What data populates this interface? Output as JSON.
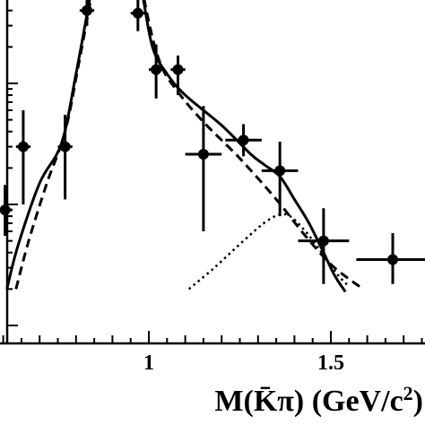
{
  "chart_data": {
    "type": "scatter",
    "xlabel": "M(K̄π) (GeV/c²)",
    "xlabel_main": "M(K̄π) (GeV/c",
    "xlabel_sup": "2",
    "xlabel_tail": ")",
    "xlim": [
      0.6,
      1.77
    ],
    "ylog": true,
    "grid": false,
    "legend": "none",
    "x_ticks": [
      {
        "value": 1.0,
        "label": "1"
      },
      {
        "value": 1.5,
        "label": "1.5"
      }
    ],
    "points": [
      {
        "x": 0.605,
        "xerr": 0.02,
        "y": 0.9,
        "ylo": 0.55,
        "yhi": 1.45
      },
      {
        "x": 0.655,
        "xerr": 0.02,
        "y": 3.0,
        "ylo": 1.0,
        "yhi": 6.0
      },
      {
        "x": 0.77,
        "xerr": 0.02,
        "y": 3.0,
        "ylo": 1.1,
        "yhi": 5.5
      },
      {
        "x": 0.83,
        "xerr": 0.02,
        "y": 40,
        "ylo": 30,
        "yhi": 55
      },
      {
        "x": 0.97,
        "xerr": 0.02,
        "y": 38,
        "ylo": 27,
        "yhi": 55
      },
      {
        "x": 1.02,
        "xerr": 0.02,
        "y": 13,
        "ylo": 7.5,
        "yhi": 21
      },
      {
        "x": 1.08,
        "xerr": 0.02,
        "y": 13,
        "ylo": 8.0,
        "yhi": 17
      },
      {
        "x": 1.15,
        "xerr": 0.05,
        "y": 2.6,
        "ylo": 0.6,
        "yhi": 6.5
      },
      {
        "x": 1.26,
        "xerr": 0.05,
        "y": 3.4,
        "ylo": 2.5,
        "yhi": 4.6
      },
      {
        "x": 1.36,
        "xerr": 0.05,
        "y": 1.9,
        "ylo": 0.8,
        "yhi": 3.3
      },
      {
        "x": 1.48,
        "xerr": 0.07,
        "y": 0.5,
        "ylo": 0.22,
        "yhi": 0.93
      },
      {
        "x": 1.67,
        "xerr": 0.1,
        "y": 0.35,
        "ylo": 0.22,
        "yhi": 0.58
      }
    ],
    "curves": [
      {
        "style": "solid",
        "points": [
          [
            0.61,
            0.2
          ],
          [
            0.64,
            0.45
          ],
          [
            0.7,
            1.5
          ],
          [
            0.76,
            3.2
          ],
          [
            0.8,
            12
          ],
          [
            0.85,
            80
          ],
          [
            0.88,
            250
          ],
          [
            0.94,
            250
          ],
          [
            0.98,
            60
          ],
          [
            1.01,
            20
          ],
          [
            1.05,
            12
          ],
          [
            1.1,
            8
          ],
          [
            1.2,
            4.5
          ],
          [
            1.28,
            2.6
          ],
          [
            1.32,
            2.1
          ],
          [
            1.36,
            1.7
          ],
          [
            1.4,
            1.1
          ],
          [
            1.44,
            0.7
          ],
          [
            1.48,
            0.4
          ],
          [
            1.51,
            0.26
          ],
          [
            1.54,
            0.19
          ]
        ]
      },
      {
        "style": "dashed",
        "points": [
          [
            0.635,
            0.2
          ],
          [
            0.67,
            0.5
          ],
          [
            0.72,
            1.5
          ],
          [
            0.77,
            4.0
          ],
          [
            0.81,
            16
          ],
          [
            0.86,
            100
          ],
          [
            0.89,
            250
          ],
          [
            0.95,
            250
          ],
          [
            0.99,
            45
          ],
          [
            1.03,
            15
          ],
          [
            1.08,
            8.5
          ],
          [
            1.15,
            4.8
          ],
          [
            1.25,
            2.4
          ],
          [
            1.35,
            1.1
          ],
          [
            1.43,
            0.55
          ],
          [
            1.5,
            0.32
          ],
          [
            1.56,
            0.23
          ],
          [
            1.59,
            0.2
          ]
        ]
      },
      {
        "style": "dotted",
        "points": [
          [
            1.11,
            0.2
          ],
          [
            1.18,
            0.3
          ],
          [
            1.26,
            0.5
          ],
          [
            1.33,
            0.75
          ],
          [
            1.38,
            0.82
          ],
          [
            1.43,
            0.6
          ],
          [
            1.48,
            0.38
          ],
          [
            1.52,
            0.26
          ],
          [
            1.55,
            0.21
          ]
        ]
      }
    ]
  }
}
